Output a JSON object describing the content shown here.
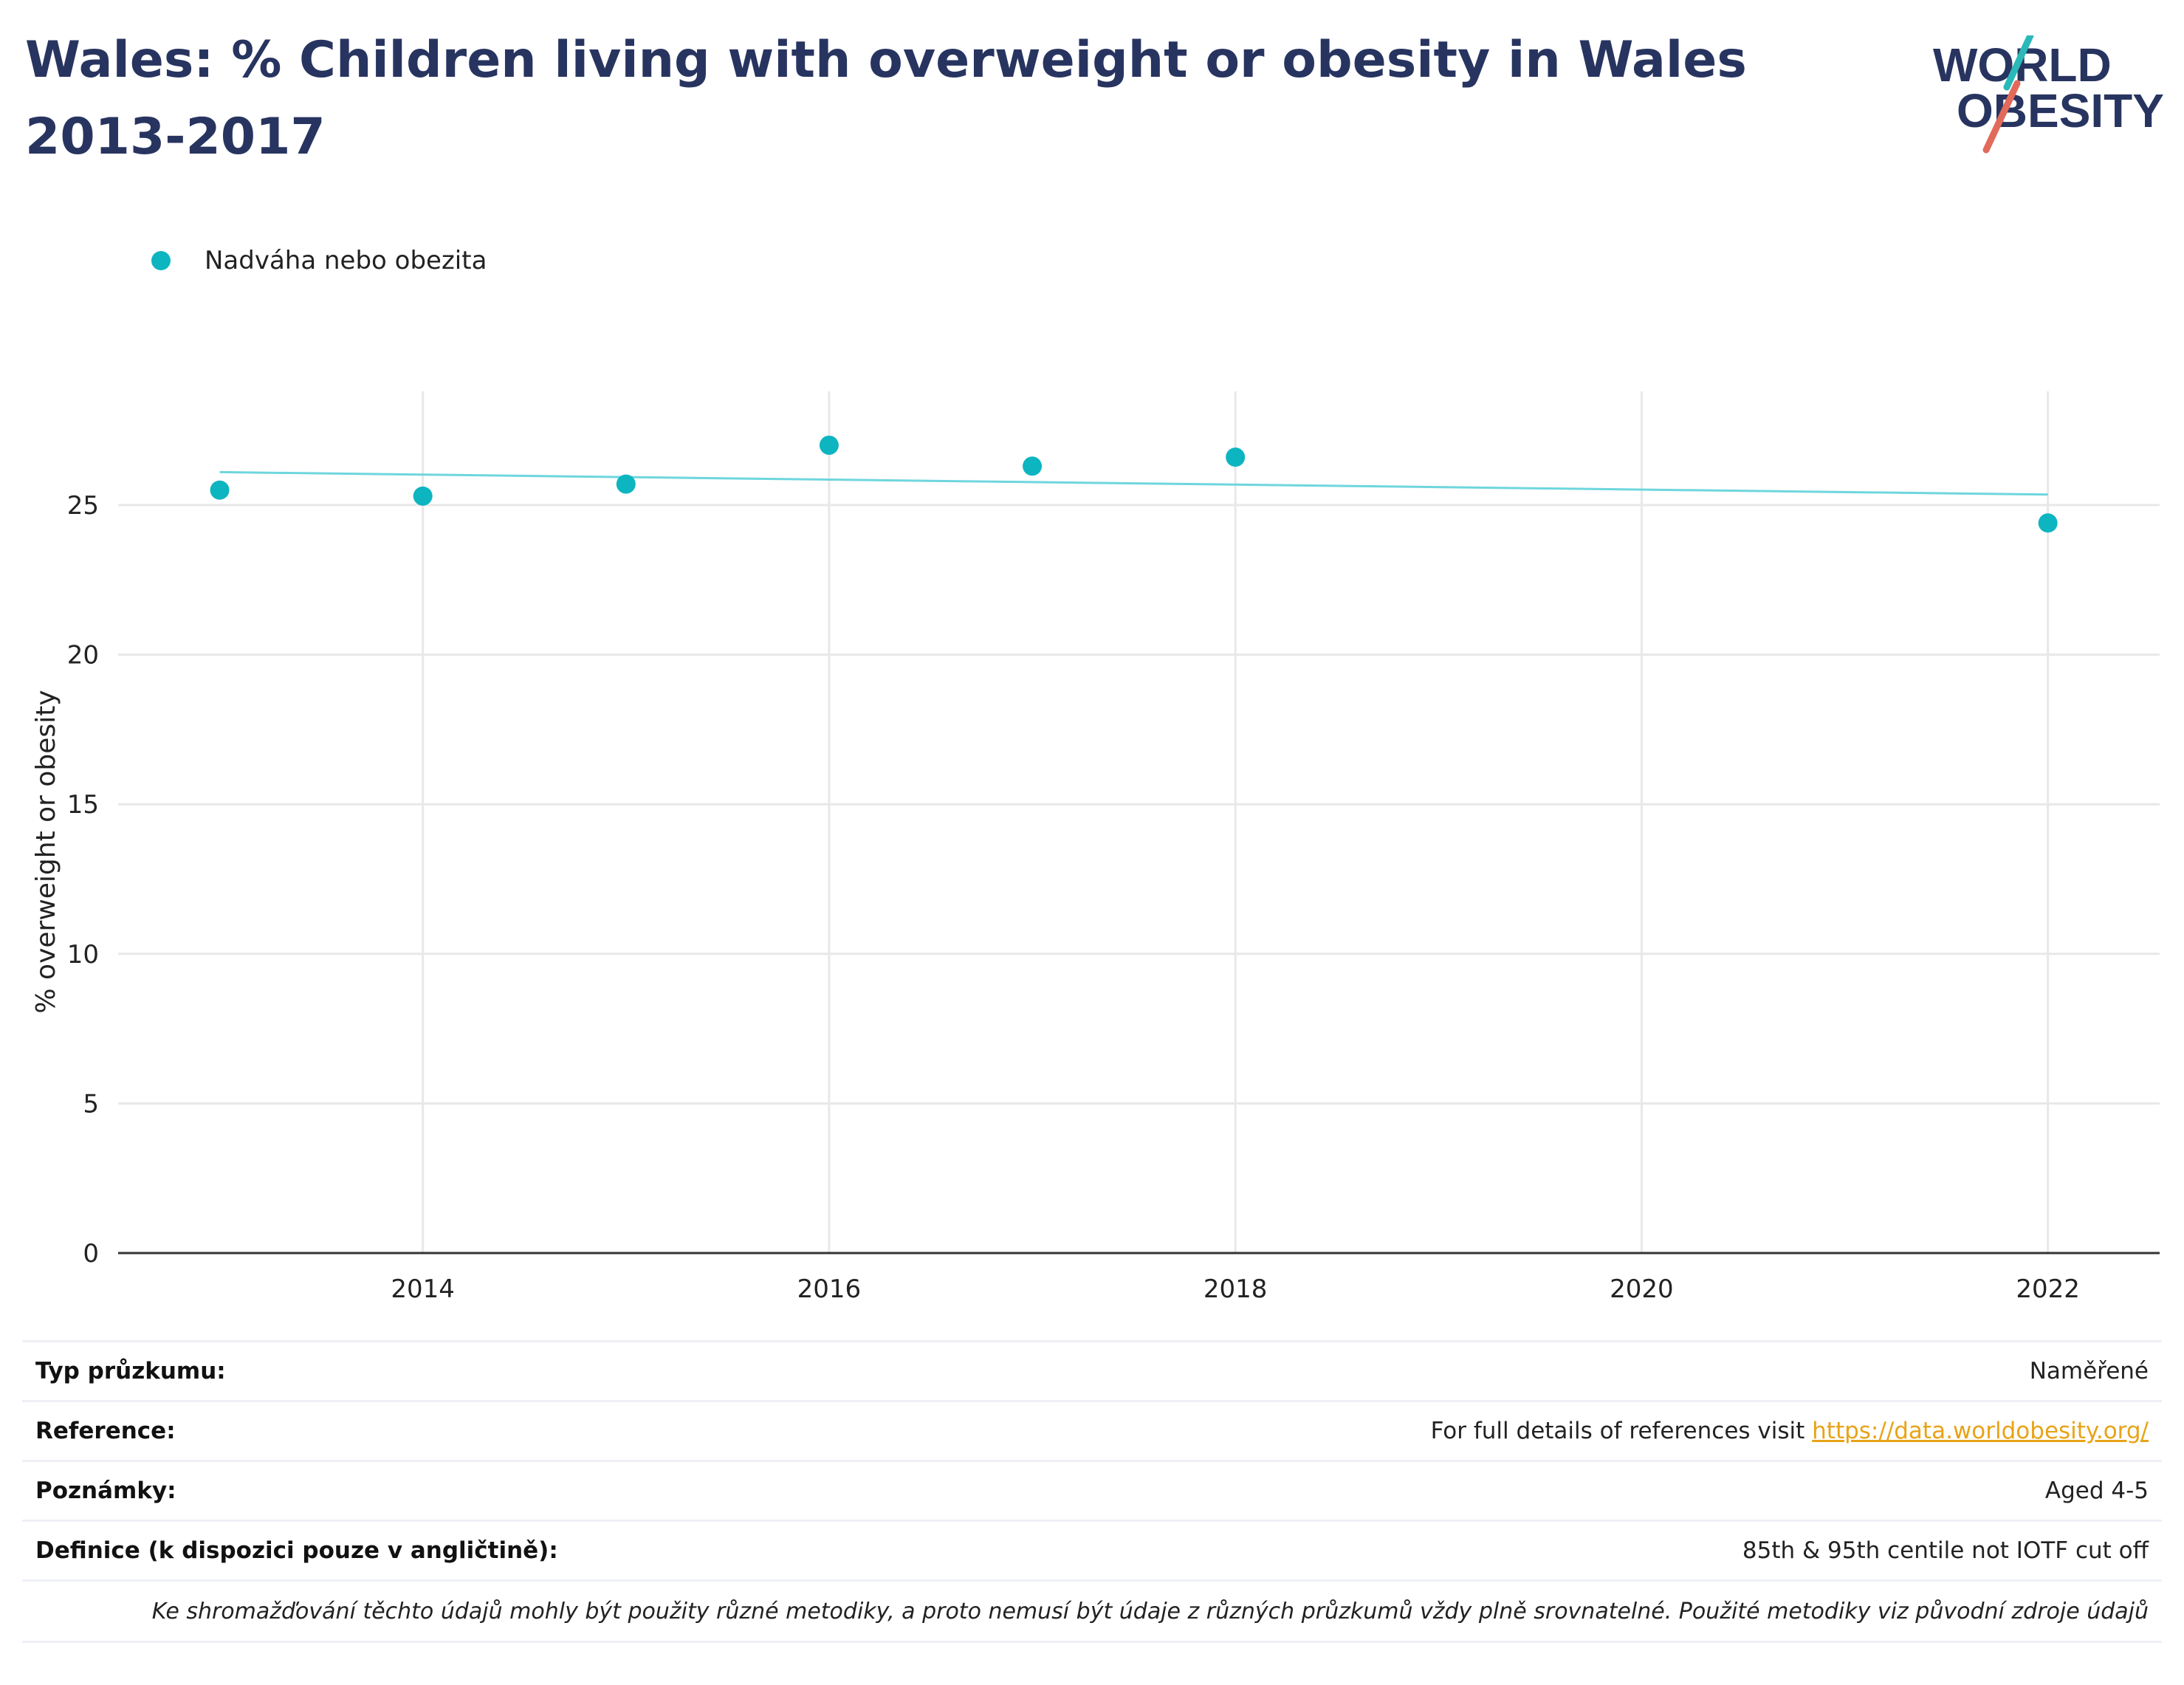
{
  "header": {
    "title": "Wales: % Children living with overweight or obesity in Wales 2013-2017",
    "logo_text_line1": "WORLD",
    "logo_text_line2": "OBESITY"
  },
  "colors": {
    "title": "#283460",
    "series": "#0db5c0",
    "trend": "#6fd6dd",
    "link": "#e8a317",
    "logo_teal": "#2bb8b8",
    "logo_red": "#e26a5a"
  },
  "chart_data": {
    "type": "scatter",
    "ylabel": "% overweight or obesity",
    "ylim": [
      0,
      28.8
    ],
    "xlim": [
      2012.5,
      2022.55
    ],
    "xticks": [
      2014,
      2016,
      2018,
      2020,
      2022
    ],
    "yticks": [
      0,
      5,
      10,
      15,
      20,
      25
    ],
    "grid": true,
    "legend_position": "top-left",
    "series": [
      {
        "name": "Nadváha nebo obezita",
        "x": [
          2013,
          2014,
          2015,
          2016,
          2017,
          2018,
          2022
        ],
        "y": [
          25.5,
          25.3,
          25.7,
          27.0,
          26.3,
          26.6,
          24.4
        ]
      }
    ],
    "trendline": {
      "x": [
        2013,
        2022
      ],
      "y": [
        26.1,
        25.35
      ]
    }
  },
  "meta": {
    "survey_type_label": "Typ průzkumu:",
    "survey_type_value": "Naměřené",
    "reference_label": "Reference:",
    "reference_text": "For full details of references visit ",
    "reference_link": "https://data.worldobesity.org/",
    "notes_label": "Poznámky:",
    "notes_value": "Aged 4-5",
    "definition_label": "Definice (k dispozici pouze v angličtině):",
    "definition_value": "85th & 95th centile not IOTF cut off",
    "disclaimer": "Ke shromažďování těchto údajů mohly být použity různé metodiky, a proto nemusí být údaje z různých průzkumů vždy plně srovnatelné. Použité metodiky viz původní zdroje údajů"
  }
}
